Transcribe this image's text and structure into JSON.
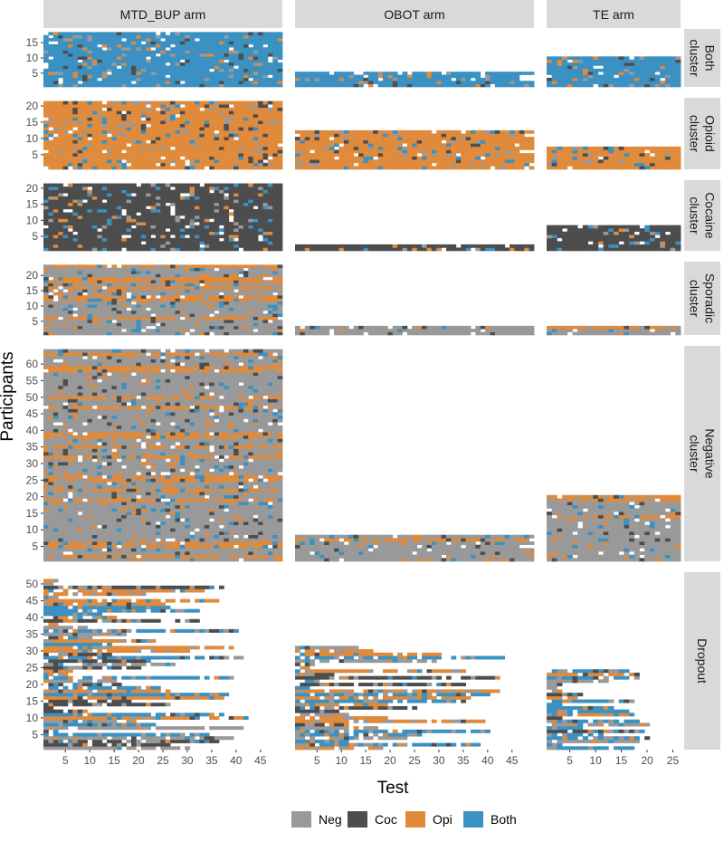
{
  "chart_data": {
    "type": "heatmap",
    "title": "",
    "xlabel": "Test",
    "ylabel": "Participants",
    "facet_columns": [
      {
        "label": "MTD_BUP arm",
        "x_ticks": [
          5,
          10,
          15,
          20,
          25,
          30,
          35,
          40,
          45
        ],
        "xlim": [
          0,
          49
        ]
      },
      {
        "label": "OBOT arm",
        "x_ticks": [
          5,
          10,
          15,
          20,
          25,
          30,
          35,
          40,
          45
        ],
        "xlim": [
          0,
          49
        ]
      },
      {
        "label": "TE arm",
        "x_ticks": [
          5,
          10,
          15,
          20,
          25
        ],
        "xlim": [
          0,
          26
        ]
      }
    ],
    "facet_rows": [
      {
        "label": "Both cluster",
        "strip_lines": [
          "Both",
          "cluster"
        ],
        "y_ticks": [
          5,
          10,
          15
        ],
        "ylim": [
          0,
          19
        ],
        "participants": [
          18,
          5,
          10
        ]
      },
      {
        "label": "Opioid cluster",
        "strip_lines": [
          "Opioid",
          "cluster"
        ],
        "y_ticks": [
          5,
          10,
          15,
          20
        ],
        "ylim": [
          0,
          22
        ],
        "participants": [
          21,
          12,
          7
        ]
      },
      {
        "label": "Cocaine cluster",
        "strip_lines": [
          "Cocaine",
          "cluster"
        ],
        "y_ticks": [
          5,
          10,
          15,
          20
        ],
        "ylim": [
          0,
          22
        ],
        "participants": [
          21,
          2,
          8
        ]
      },
      {
        "label": "Sporadic cluster",
        "strip_lines": [
          "Sporadic",
          "cluster"
        ],
        "y_ticks": [
          5,
          10,
          15,
          20
        ],
        "ylim": [
          0,
          24
        ],
        "participants": [
          23,
          3,
          3
        ]
      },
      {
        "label": "Negative cluster",
        "strip_lines": [
          "Negative",
          "cluster"
        ],
        "y_ticks": [
          5,
          10,
          15,
          20,
          25,
          30,
          35,
          40,
          45,
          50,
          55,
          60
        ],
        "ylim": [
          0,
          65
        ],
        "participants": [
          64,
          8,
          20
        ]
      },
      {
        "label": "Dropout",
        "strip_lines": [
          "Dropout"
        ],
        "y_ticks": [
          5,
          10,
          15,
          20,
          25,
          30,
          35,
          40,
          45,
          50
        ],
        "ylim": [
          0,
          53
        ],
        "participants": [
          51,
          31,
          24
        ]
      }
    ],
    "tests_per_arm": [
      49,
      49,
      26
    ],
    "dominant_result": {
      "Both cluster": "Both",
      "Opioid cluster": "Opi",
      "Cocaine cluster": "Coc",
      "Sporadic cluster": "Neg",
      "Negative cluster": "Neg",
      "Dropout": "Neg"
    },
    "legend": [
      {
        "label": "Neg",
        "color": "#999999"
      },
      {
        "label": "Coc",
        "color": "#4d4d4d"
      },
      {
        "label": "Opi",
        "color": "#e08a3c"
      },
      {
        "label": "Both",
        "color": "#3a91c2"
      }
    ]
  }
}
